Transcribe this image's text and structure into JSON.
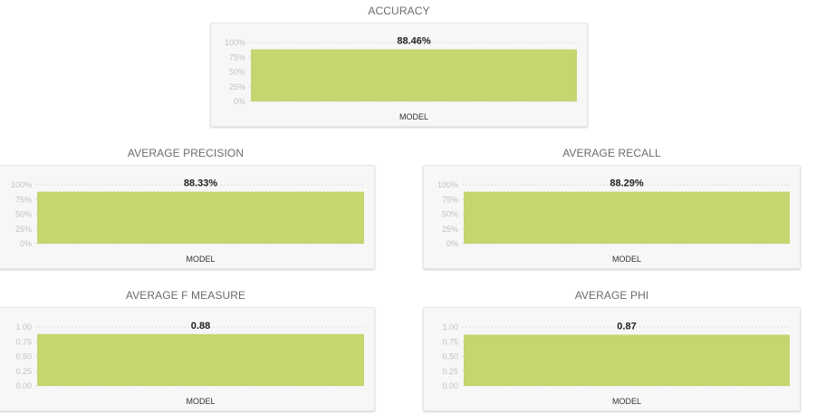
{
  "colors": {
    "bar": "#c3d66f",
    "card_background": "#f7f7f7",
    "title_text": "#6b6b6b",
    "tick_text": "#c2c2c2"
  },
  "chart_data": [
    {
      "type": "bar",
      "title": "ACCURACY",
      "categories": [
        "MODEL"
      ],
      "values": [
        88.46
      ],
      "value_labels": [
        "88.46%"
      ],
      "ylim": [
        0,
        100
      ],
      "yticks": [
        "100%",
        "75%",
        "50%",
        "25%",
        "0%"
      ],
      "grid": true
    },
    {
      "type": "bar",
      "title": "AVERAGE PRECISION",
      "categories": [
        "MODEL"
      ],
      "values": [
        88.33
      ],
      "value_labels": [
        "88.33%"
      ],
      "ylim": [
        0,
        100
      ],
      "yticks": [
        "100%",
        "75%",
        "50%",
        "25%",
        "0%"
      ],
      "grid": true
    },
    {
      "type": "bar",
      "title": "AVERAGE RECALL",
      "categories": [
        "MODEL"
      ],
      "values": [
        88.29
      ],
      "value_labels": [
        "88.29%"
      ],
      "ylim": [
        0,
        100
      ],
      "yticks": [
        "100%",
        "75%",
        "50%",
        "25%",
        "0%"
      ],
      "grid": true
    },
    {
      "type": "bar",
      "title": "AVERAGE F MEASURE",
      "categories": [
        "MODEL"
      ],
      "values": [
        0.88
      ],
      "value_labels": [
        "0.88"
      ],
      "ylim": [
        0,
        1
      ],
      "yticks": [
        "1.00",
        "0.75",
        "0.50",
        "0.25",
        "0.00"
      ],
      "grid": true
    },
    {
      "type": "bar",
      "title": "AVERAGE PHI",
      "categories": [
        "MODEL"
      ],
      "values": [
        0.87
      ],
      "value_labels": [
        "0.87"
      ],
      "ylim": [
        0,
        1
      ],
      "yticks": [
        "1.00",
        "0.75",
        "0.50",
        "0.25",
        "0.00"
      ],
      "grid": true
    }
  ]
}
